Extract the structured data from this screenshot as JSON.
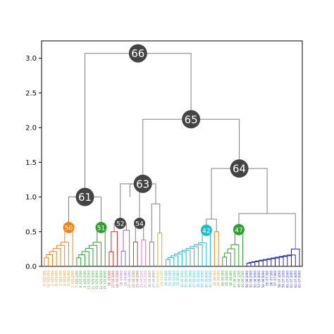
{
  "chart_data": {
    "type": "dendrogram",
    "title": "",
    "xlabel": "",
    "ylabel": "",
    "ylim": [
      0,
      3.25
    ],
    "yticks": [
      "0.0",
      "0.5",
      "1.0",
      "1.5",
      "2.0",
      "2.5",
      "3.0"
    ],
    "grid": false,
    "nodes": [
      {
        "label": "66",
        "height": 3.07,
        "merges": [
          "61",
          "65"
        ],
        "color": "#444444",
        "size": "large"
      },
      {
        "label": "65",
        "height": 2.12,
        "merges": [
          "63",
          "64"
        ],
        "color": "#444444",
        "size": "large"
      },
      {
        "label": "64",
        "height": 1.41,
        "merges": [
          "C",
          "D"
        ],
        "color": "#444444",
        "size": "large"
      },
      {
        "label": "63",
        "height": 1.19,
        "merges": [
          "A",
          "B"
        ],
        "color": "#444444",
        "size": "large"
      },
      {
        "label": "61",
        "height": 1.0,
        "merges": [
          "50",
          "51"
        ],
        "color": "#444444",
        "size": "large"
      },
      {
        "label": "52",
        "height": 0.62,
        "merges": [],
        "color": "#444444",
        "size": "small"
      },
      {
        "label": "54",
        "height": 0.62,
        "merges": [],
        "color": "#444444",
        "size": "small"
      },
      {
        "label": "50",
        "height": 0.56,
        "merges": [],
        "color": "#ff7f0e",
        "size": "small"
      },
      {
        "label": "51",
        "height": 0.56,
        "merges": [],
        "color": "#2ca02c",
        "size": "small"
      },
      {
        "label": "42",
        "height": 0.52,
        "merges": [],
        "color": "#17becf",
        "size": "small"
      },
      {
        "label": "47",
        "height": 0.53,
        "merges": [],
        "color": "#2ca02c",
        "size": "small"
      }
    ],
    "leaf_labels": [
      "6: 025:300",
      "14: 025:200",
      "2: 025:500",
      "8: 025:600",
      "3: 025:700",
      "4: 025:800",
      "5: 025:900",
      "1: 025:1000",
      "7: 025:1200",
      "9: 025:1500",
      "0: 025:2000",
      "13: 025:2500",
      "11: 025:3000",
      "15: 025:4000",
      "12: 025:5000",
      "10: 025:6000",
      "16: 03:900",
      "17: 03:1000",
      "18: 03:1500",
      "19: 04:600",
      "20: 04:800",
      "21: 04:1000",
      "22: 04:1200",
      "23: 04:1500",
      "24: 04:2000",
      "25: 04:2500",
      "26: 04:3000",
      "27: 04:4000",
      "28: 04:5000",
      "29: 05:300",
      "30: 05:400",
      "31: 05:500",
      "32: 05:600",
      "33: 05:800",
      "34: 05:1000",
      "35: 05:1200",
      "36: 05:1500",
      "37: 05:2000",
      "38: 05:2500",
      "39: 05:3000",
      "40: 05:4000",
      "41: 05:5000",
      "42: 06:300",
      "43: 06:400",
      "44: 06:500",
      "45: 06:600",
      "46: 06:800",
      "47: 06:1000",
      "48: 06:1200",
      "49: 06:1500",
      "50: 06:2000",
      "51: 06:2500",
      "52: 06:3000",
      "53: 06:4000",
      "54: 06:5000",
      "55: 07:300",
      "56: 07:500",
      "57: 07:800",
      "58: 07:1000",
      "59: 07:1500",
      "60: 07:2000",
      "61: 07:3000",
      "62: 07:4000",
      "63: 07:5000"
    ],
    "leaf_colors": [
      "#ff7f0e",
      "#ff7f0e",
      "#ff7f0e",
      "#ff7f0e",
      "#ff7f0e",
      "#ff7f0e",
      "#ff7f0e",
      "#ff7f0e",
      "#2ca02c",
      "#2ca02c",
      "#2ca02c",
      "#2ca02c",
      "#2ca02c",
      "#2ca02c",
      "#2ca02c",
      "#2ca02c",
      "#d62728",
      "#d62728",
      "#d62728",
      "#9467bd",
      "#9467bd",
      "#9467bd",
      "#8c564b",
      "#8c564b",
      "#e377c2",
      "#e377c2",
      "#7f7f7f",
      "#7f7f7f",
      "#bcbd22",
      "#bcbd22",
      "#17becf",
      "#17becf",
      "#17becf",
      "#17becf",
      "#17becf",
      "#17becf",
      "#17becf",
      "#17becf",
      "#17becf",
      "#17becf",
      "#17becf",
      "#17becf",
      "#ff7f0e",
      "#ff7f0e",
      "#2ca02c",
      "#2ca02c",
      "#2ca02c",
      "#2ca02c",
      "#2ca02c",
      "#2ca02c",
      "#1f1fbf",
      "#1f1fbf",
      "#1f1fbf",
      "#1f1fbf",
      "#1f1fbf",
      "#1f1fbf",
      "#1f1fbf",
      "#1f1fbf",
      "#1f1fbf",
      "#1f1fbf",
      "#1f1fbf",
      "#1f1fbf",
      "#1f1fbf",
      "#1f1fbf"
    ],
    "links_color": "#808080"
  }
}
